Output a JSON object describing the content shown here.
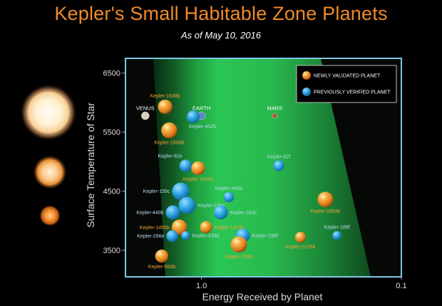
{
  "colors": {
    "validated": "#f29a2e",
    "verified": "#2fa6e6",
    "validated_label": "#f5a23a",
    "verified_label": "#b9d9ec",
    "frame": "#7ec8e8",
    "zone": "#22b24a"
  },
  "chart_data": {
    "type": "scatter",
    "title": "Kepler's Small Habitable Zone Planets",
    "subtitle": "As of May 10, 2016",
    "xlabel": "Energy Received by Planet",
    "ylabel": "Surface Temperature of Star",
    "x_scale": "log",
    "x_direction": "decreasing",
    "xlim": [
      2.4,
      0.1
    ],
    "ylim": [
      3050,
      6750
    ],
    "x_ticks": [
      {
        "value": 1.0,
        "label": "1.0"
      },
      {
        "value": 0.1,
        "label": "0.1"
      }
    ],
    "y_ticks": [
      {
        "value": 6500,
        "label": "6500"
      },
      {
        "value": 5500,
        "label": "5500"
      },
      {
        "value": 4500,
        "label": "4500"
      },
      {
        "value": 3500,
        "label": "3500"
      }
    ],
    "legend_position": "top-right",
    "legend": [
      {
        "key": "validated",
        "label": "NEWLY VALIDATED PLANET"
      },
      {
        "key": "verified",
        "label": "PREVIOUSLY VERIFIED PLANET"
      }
    ],
    "solar_system": [
      {
        "name": "VENUS",
        "x": 1.91,
        "y": 5778,
        "color": "#d8d0bc"
      },
      {
        "name": "EARTH",
        "x": 1.0,
        "y": 5778,
        "color": "#5a86c8"
      },
      {
        "name": "MARS",
        "x": 0.43,
        "y": 5778,
        "color": "#a8553a"
      }
    ],
    "planets": [
      {
        "name": "Kepler-1638b",
        "type": "validated",
        "x": 1.52,
        "y": 5930,
        "size": 1.87
      },
      {
        "name": "Kepler-452b",
        "type": "verified",
        "x": 1.1,
        "y": 5760,
        "size": 1.63
      },
      {
        "name": "Kepler-1606b",
        "type": "validated",
        "x": 1.45,
        "y": 5530,
        "size": 2.07
      },
      {
        "name": "Kepler-62e",
        "type": "verified",
        "x": 1.2,
        "y": 4930,
        "size": 1.61
      },
      {
        "name": "Kepler-1544b",
        "type": "validated",
        "x": 1.04,
        "y": 4890,
        "size": 1.78
      },
      {
        "name": "Kepler-62f",
        "type": "verified",
        "x": 0.41,
        "y": 4930,
        "size": 1.41
      },
      {
        "name": "Kepler-155c",
        "type": "verified",
        "x": 1.27,
        "y": 4500,
        "size": 2.24
      },
      {
        "name": "Kepler-442b",
        "type": "verified",
        "x": 0.73,
        "y": 4400,
        "size": 1.34
      },
      {
        "name": "Kepler-1593b",
        "type": "validated",
        "x": 0.24,
        "y": 4360,
        "size": 2.02
      },
      {
        "name": "Kepler-235e",
        "type": "verified",
        "x": 1.18,
        "y": 4260,
        "size": 2.22
      },
      {
        "name": "Kepler-440b",
        "type": "verified",
        "x": 1.39,
        "y": 4140,
        "size": 1.86
      },
      {
        "name": "Kepler-283c",
        "type": "verified",
        "x": 0.8,
        "y": 4140,
        "size": 1.82
      },
      {
        "name": "Kepler-1455b",
        "type": "validated",
        "x": 1.29,
        "y": 3890,
        "size": 1.99
      },
      {
        "name": "Kepler-1410b",
        "type": "validated",
        "x": 0.95,
        "y": 3890,
        "size": 1.56
      },
      {
        "name": "Kepler-296e",
        "type": "verified",
        "x": 1.4,
        "y": 3740,
        "size": 1.53
      },
      {
        "name": "Kepler-438b",
        "type": "verified",
        "x": 1.2,
        "y": 3750,
        "size": 1.12
      },
      {
        "name": "Kepler-296f",
        "type": "verified",
        "x": 0.62,
        "y": 3750,
        "size": 1.8
      },
      {
        "name": "Kepler-1229b",
        "type": "validated",
        "x": 0.32,
        "y": 3720,
        "size": 1.4
      },
      {
        "name": "Kepler-186f",
        "type": "verified",
        "x": 0.21,
        "y": 3750,
        "size": 1.17
      },
      {
        "name": "Kepler-705b",
        "type": "validated",
        "x": 0.65,
        "y": 3600,
        "size": 2.11
      },
      {
        "name": "Kepler-560b",
        "type": "validated",
        "x": 1.58,
        "y": 3400,
        "size": 1.72
      }
    ]
  }
}
